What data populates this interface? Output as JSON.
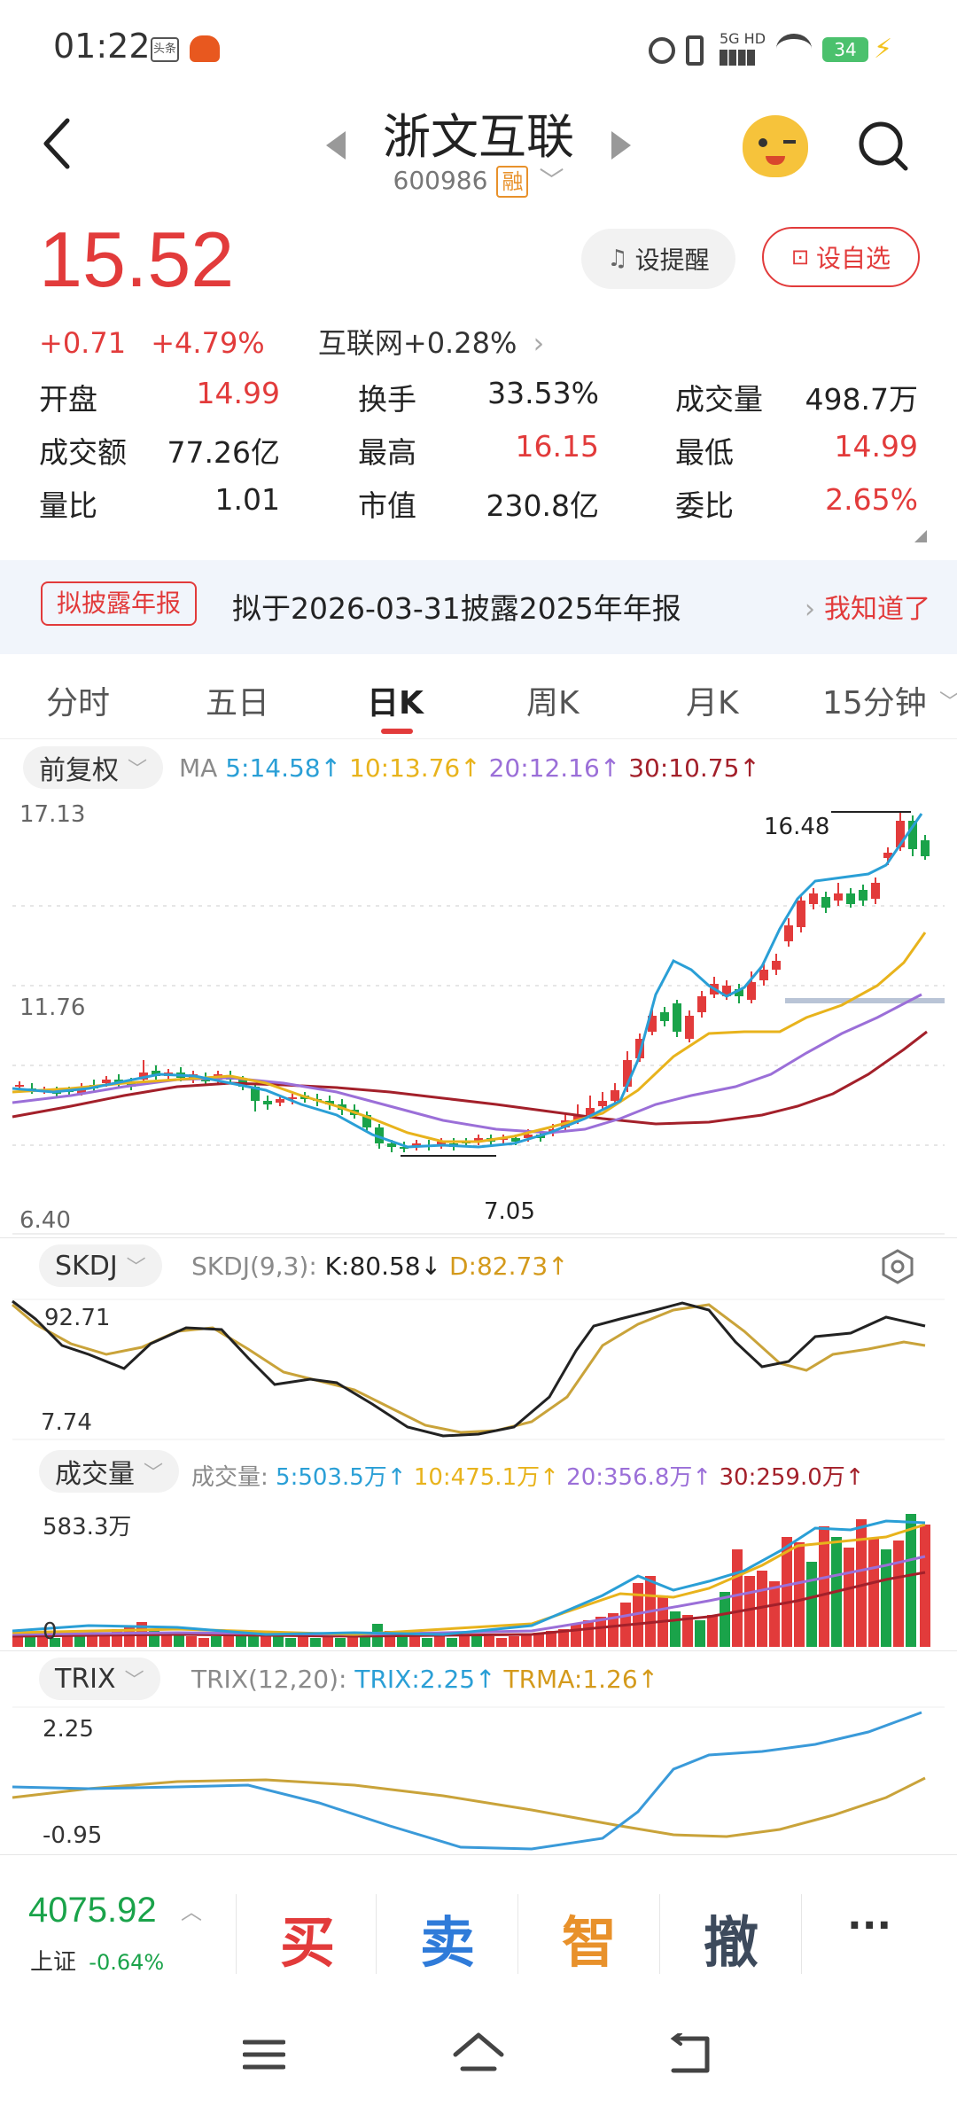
{
  "status_bar": {
    "time": "01:22",
    "app_badge": "头条",
    "network": "5G HD",
    "battery": "34"
  },
  "header": {
    "stock_name": "浙文互联",
    "stock_code": "600986",
    "margin_badge": "融"
  },
  "quote": {
    "price": "15.52",
    "change": "+0.71",
    "change_pct": "+4.79%",
    "sector": "互联网+0.28%",
    "alert_button": "设提醒",
    "watchlist_button": "设自选",
    "fields": [
      {
        "label": "开盘",
        "value": "14.99",
        "color": "#e23b3b"
      },
      {
        "label": "换手",
        "value": "33.53%",
        "color": "#222222"
      },
      {
        "label": "成交量",
        "value": "498.7万",
        "color": "#222222"
      },
      {
        "label": "成交额",
        "value": "77.26亿",
        "color": "#222222"
      },
      {
        "label": "最高",
        "value": "16.15",
        "color": "#e23b3b"
      },
      {
        "label": "最低",
        "value": "14.99",
        "color": "#e23b3b"
      },
      {
        "label": "量比",
        "value": "1.01",
        "color": "#222222"
      },
      {
        "label": "市值",
        "value": "230.8亿",
        "color": "#222222"
      },
      {
        "label": "委比",
        "value": "2.65%",
        "color": "#e23b3b"
      }
    ]
  },
  "notice": {
    "badge": "拟披露年报",
    "text": "拟于2026-03-31披露2025年年报",
    "confirm": "我知道了"
  },
  "period_tabs": [
    "分时",
    "五日",
    "日K",
    "周K",
    "月K",
    "15分钟"
  ],
  "active_tab": "日K",
  "kline_panel": {
    "adjust_selector": "前复权",
    "ma_label": "MA",
    "ma": [
      {
        "text": "5:14.58↑",
        "color": "#2a9fd6"
      },
      {
        "text": "10:13.76↑",
        "color": "#e8b31c"
      },
      {
        "text": "20:12.16↑",
        "color": "#9b6fd8"
      },
      {
        "text": "30:10.75↑",
        "color": "#a3202a"
      }
    ],
    "y_top": "17.13",
    "y_mid": "11.76",
    "y_bottom": "6.40",
    "high_mark": "16.48",
    "low_mark": "7.05"
  },
  "skdj_panel": {
    "selector": "SKDJ",
    "params": "SKDJ(9,3):",
    "k": "K:80.58↓",
    "d": "D:82.73↑",
    "y_top": "92.71",
    "y_bottom": "7.74"
  },
  "volume_panel": {
    "selector": "成交量",
    "label": "成交量:",
    "ma": [
      {
        "text": "5:503.5万↑",
        "color": "#2a9fd6"
      },
      {
        "text": "10:475.1万↑",
        "color": "#e8b31c"
      },
      {
        "text": "20:356.8万↑",
        "color": "#9b6fd8"
      },
      {
        "text": "30:259.0万↑",
        "color": "#a3202a"
      }
    ],
    "y_top": "583.3万",
    "y_bottom": "0"
  },
  "trix_panel": {
    "selector": "TRIX",
    "params": "TRIX(12,20):",
    "trix": "TRIX:2.25↑",
    "trma": "TRMA:1.26↑",
    "y_top": "2.25",
    "y_bottom": "-0.95"
  },
  "trade_bar": {
    "index_value": "4075.92",
    "index_name": "上证",
    "index_change": "-0.64%",
    "buy": "买",
    "sell": "卖",
    "smart": "智",
    "cancel": "撤",
    "more": "···"
  },
  "colors": {
    "up": "#e23b3b",
    "down": "#1aa34a",
    "ma5": "#2a9fd6",
    "ma10": "#e8b31c",
    "ma20": "#9b6fd8",
    "ma30": "#a3202a"
  }
}
